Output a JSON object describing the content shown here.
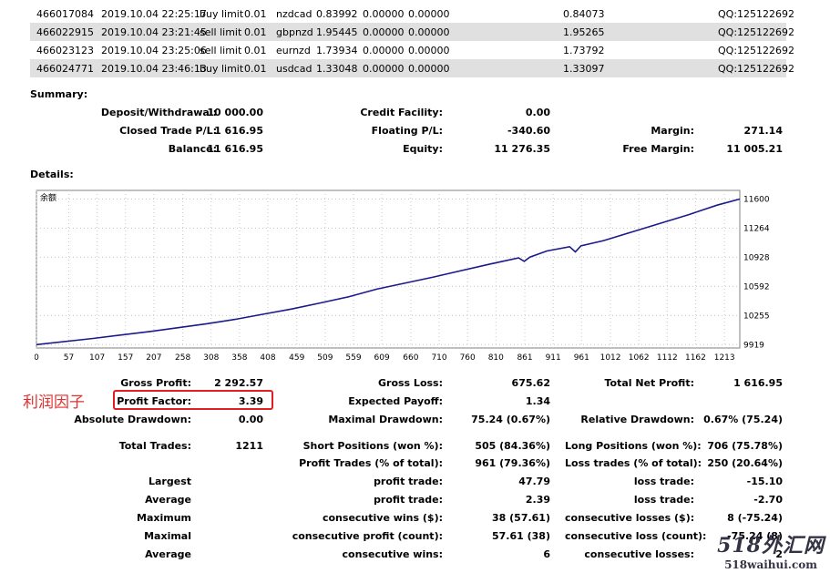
{
  "trades": [
    {
      "ticket": "466017084",
      "time": "2019.10.04 22:25:17",
      "type": "buy limit",
      "size": "0.01",
      "symbol": "nzdcad",
      "price": "0.83992",
      "sl": "0.00000",
      "tp": "0.00000",
      "market": "0.84073",
      "comment": "QQ:125122692"
    },
    {
      "ticket": "466022915",
      "time": "2019.10.04 23:21:45",
      "type": "sell limit",
      "size": "0.01",
      "symbol": "gbpnzd",
      "price": "1.95445",
      "sl": "0.00000",
      "tp": "0.00000",
      "market": "1.95265",
      "comment": "QQ:125122692"
    },
    {
      "ticket": "466023123",
      "time": "2019.10.04 23:25:06",
      "type": "sell limit",
      "size": "0.01",
      "symbol": "eurnzd",
      "price": "1.73934",
      "sl": "0.00000",
      "tp": "0.00000",
      "market": "1.73792",
      "comment": "QQ:125122692"
    },
    {
      "ticket": "466024771",
      "time": "2019.10.04 23:46:13",
      "type": "buy limit",
      "size": "0.01",
      "symbol": "usdcad",
      "price": "1.33048",
      "sl": "0.00000",
      "tp": "0.00000",
      "market": "1.33097",
      "comment": "QQ:125122692"
    }
  ],
  "summary": {
    "heading": "Summary:",
    "deposit_label": "Deposit/Withdrawal:",
    "deposit": "10 000.00",
    "credit_label": "Credit Facility:",
    "credit": "0.00",
    "closed_label": "Closed Trade P/L:",
    "closed": "1 616.95",
    "floating_label": "Floating P/L:",
    "floating": "-340.60",
    "margin_label": "Margin:",
    "margin": "271.14",
    "balance_label": "Balance:",
    "balance": "11 616.95",
    "equity_label": "Equity:",
    "equity": "11 276.35",
    "free_margin_label": "Free Margin:",
    "free_margin": "11 005.21"
  },
  "details_heading": "Details:",
  "chart_data": {
    "type": "line",
    "title": "余额",
    "x_ticks": [
      "0",
      "57",
      "107",
      "157",
      "207",
      "258",
      "308",
      "358",
      "408",
      "459",
      "509",
      "559",
      "609",
      "660",
      "710",
      "760",
      "810",
      "861",
      "911",
      "961",
      "1012",
      "1062",
      "1112",
      "1162",
      "1213"
    ],
    "y_ticks": [
      "11600",
      "11264",
      "10928",
      "10592",
      "10255",
      "9919"
    ],
    "xlim": [
      0,
      1240
    ],
    "ylim": [
      9880,
      11700
    ],
    "series": [
      {
        "x": [
          0,
          100,
          200,
          300,
          350,
          400,
          450,
          500,
          550,
          600,
          700,
          800,
          850,
          860,
          870,
          900,
          940,
          950,
          960,
          1000,
          1050,
          1100,
          1150,
          1200,
          1240
        ],
        "y": [
          9919,
          9990,
          10070,
          10160,
          10210,
          10270,
          10330,
          10400,
          10470,
          10560,
          10700,
          10850,
          10920,
          10880,
          10930,
          11000,
          11050,
          10990,
          11060,
          11120,
          11220,
          11320,
          11420,
          11530,
          11600
        ]
      }
    ],
    "line_color": "#1a1a8c"
  },
  "stats": {
    "gross_profit_label": "Gross Profit:",
    "gross_profit": "2 292.57",
    "gross_loss_label": "Gross Loss:",
    "gross_loss": "675.62",
    "total_net_label": "Total Net Profit:",
    "total_net": "1 616.95",
    "profit_factor_label": "Profit Factor:",
    "profit_factor": "3.39",
    "expected_payoff_label": "Expected Payoff:",
    "expected_payoff": "1.34",
    "abs_dd_label": "Absolute Drawdown:",
    "abs_dd": "0.00",
    "max_dd_label": "Maximal Drawdown:",
    "max_dd": "75.24 (0.67%)",
    "rel_dd_label": "Relative Drawdown:",
    "rel_dd": "0.67% (75.24)",
    "total_trades_label": "Total Trades:",
    "total_trades": "1211",
    "short_label": "Short Positions (won %):",
    "short": "505 (84.36%)",
    "long_label": "Long Positions (won %):",
    "long": "706 (75.78%)",
    "profit_trades_label": "Profit Trades (% of total):",
    "profit_trades": "961 (79.36%)",
    "loss_trades_label": "Loss trades (% of total):",
    "loss_trades": "250 (20.64%)",
    "largest_label": "Largest",
    "largest_profit_label": "profit trade:",
    "largest_profit": "47.79",
    "largest_loss_label": "loss trade:",
    "largest_loss": "-15.10",
    "average_label": "Average",
    "average_profit_label": "profit trade:",
    "average_profit": "2.39",
    "average_loss_label": "loss trade:",
    "average_loss": "-2.70",
    "maximum_label": "Maximum",
    "max_cons_wins_label": "consecutive wins ($):",
    "max_cons_wins": "38 (57.61)",
    "max_cons_losses_label": "consecutive losses ($):",
    "max_cons_losses": "8 (-75.24)",
    "maximal_label": "Maximal",
    "maximal_profit_label": "consecutive profit (count):",
    "maximal_profit": "57.61 (38)",
    "maximal_loss_label": "consecutive loss (count):",
    "maximal_loss": "-75.24 (8)",
    "average2_label": "Average",
    "avg_cons_wins_label": "consecutive wins:",
    "avg_cons_wins": "6",
    "avg_cons_losses_label": "consecutive losses:",
    "avg_cons_losses": "2"
  },
  "annotation_label": "利润因子",
  "watermark": {
    "big": "518外汇网",
    "small": "518waihui.com"
  }
}
